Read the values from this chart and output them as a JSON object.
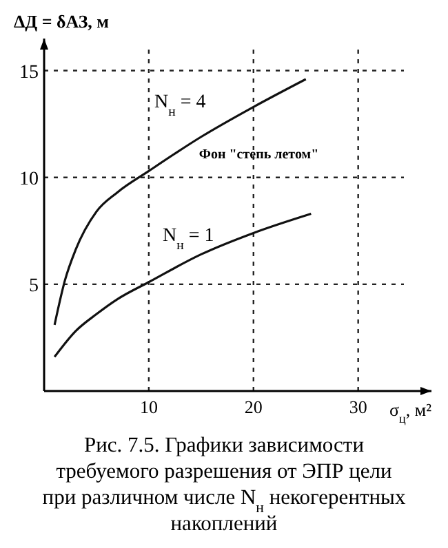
{
  "chart_data": {
    "type": "line",
    "title": "Рис. 7.5. Графики зависимости требуемого разрешения от ЭПР цели при различном числе N$_{н}$ некогерентных накоплений",
    "xlabel": "σ$_{ц}$, м²",
    "ylabel": "ΔД = δАЗ, м",
    "series": [
      {
        "name": "N$_{н}$ = 4",
        "color": "#111111",
        "x": [
          1,
          2,
          3,
          5,
          7,
          10,
          15,
          20,
          25
        ],
        "values": [
          3.1,
          5.2,
          6.6,
          8.4,
          9.3,
          10.3,
          11.9,
          13.3,
          14.6
        ]
      },
      {
        "name": "N$_{н}$ = 1",
        "color": "#111111",
        "x": [
          1,
          3,
          5,
          7,
          10,
          15,
          20,
          25.5
        ],
        "values": [
          1.6,
          2.8,
          3.6,
          4.3,
          5.1,
          6.4,
          7.4,
          8.3
        ]
      }
    ],
    "annotations": [
      "Фон \"степь летом\""
    ],
    "xlim": [
      0,
      37
    ],
    "ylim": [
      0,
      16.5
    ],
    "xticks": [
      10,
      20,
      30
    ],
    "yticks": [
      5,
      10,
      15
    ],
    "grid": true,
    "line_style": "solid",
    "marker": "none"
  }
}
